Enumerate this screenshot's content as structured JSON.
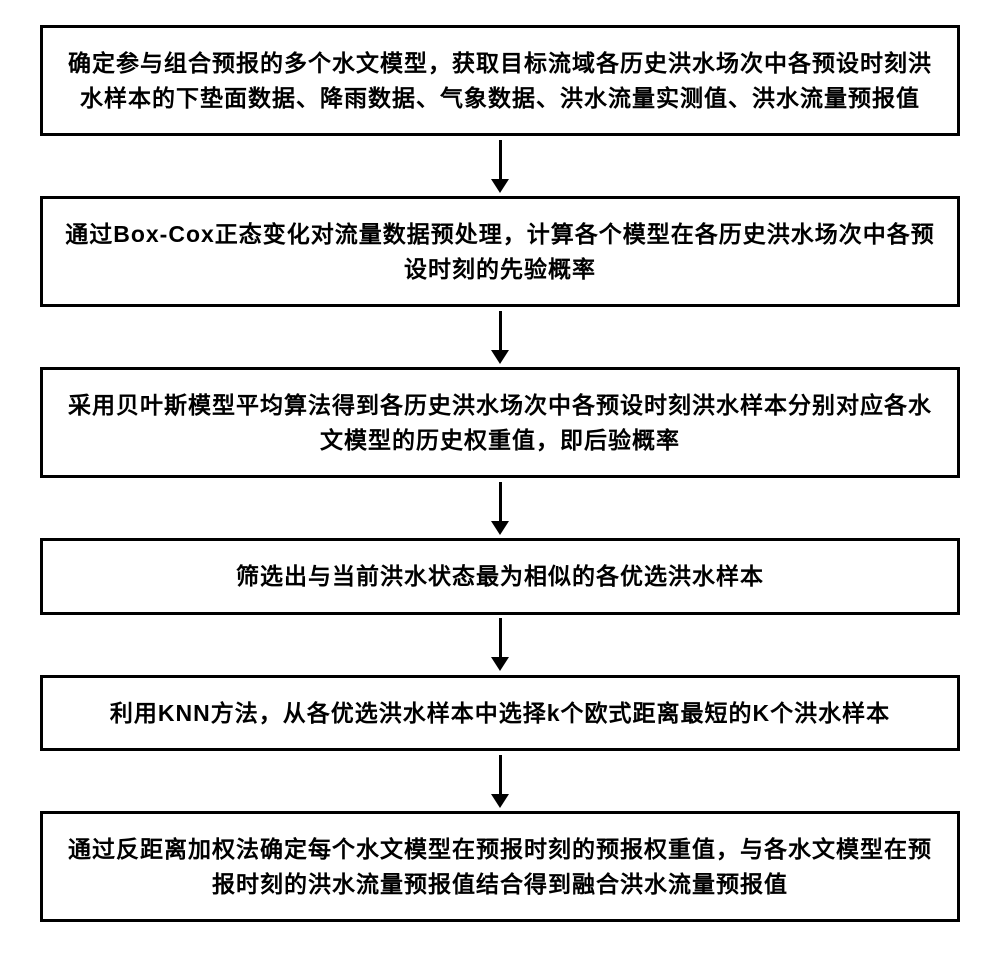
{
  "flowchart": {
    "type": "flowchart",
    "direction": "vertical",
    "background_color": "#ffffff",
    "box_border_color": "#000000",
    "box_border_width": 3,
    "box_fill_color": "#ffffff",
    "arrow_color": "#000000",
    "arrow_width": 3,
    "font_color": "#000000",
    "font_size": 23,
    "font_weight": "bold",
    "steps": [
      {
        "id": "step1",
        "text": "确定参与组合预报的多个水文模型，获取目标流域各历史洪水场次中各预设时刻洪水样本的下垫面数据、降雨数据、气象数据、洪水流量实测值、洪水流量预报值",
        "lines": 2
      },
      {
        "id": "step2",
        "text": "通过Box-Cox正态变化对流量数据预处理，计算各个模型在各历史洪水场次中各预设时刻的先验概率",
        "lines": 2
      },
      {
        "id": "step3",
        "text": "采用贝叶斯模型平均算法得到各历史洪水场次中各预设时刻洪水样本分别对应各水文模型的历史权重值，即后验概率",
        "lines": 2
      },
      {
        "id": "step4",
        "text": "筛选出与当前洪水状态最为相似的各优选洪水样本",
        "lines": 1
      },
      {
        "id": "step5",
        "text": "利用KNN方法，从各优选洪水样本中选择k个欧式距离最短的K个洪水样本",
        "lines": 1
      },
      {
        "id": "step6",
        "text": "通过反距离加权法确定每个水文模型在预报时刻的预报权重值，与各水文模型在预报时刻的洪水流量预报值结合得到融合洪水流量预报值",
        "lines": 2
      }
    ]
  }
}
